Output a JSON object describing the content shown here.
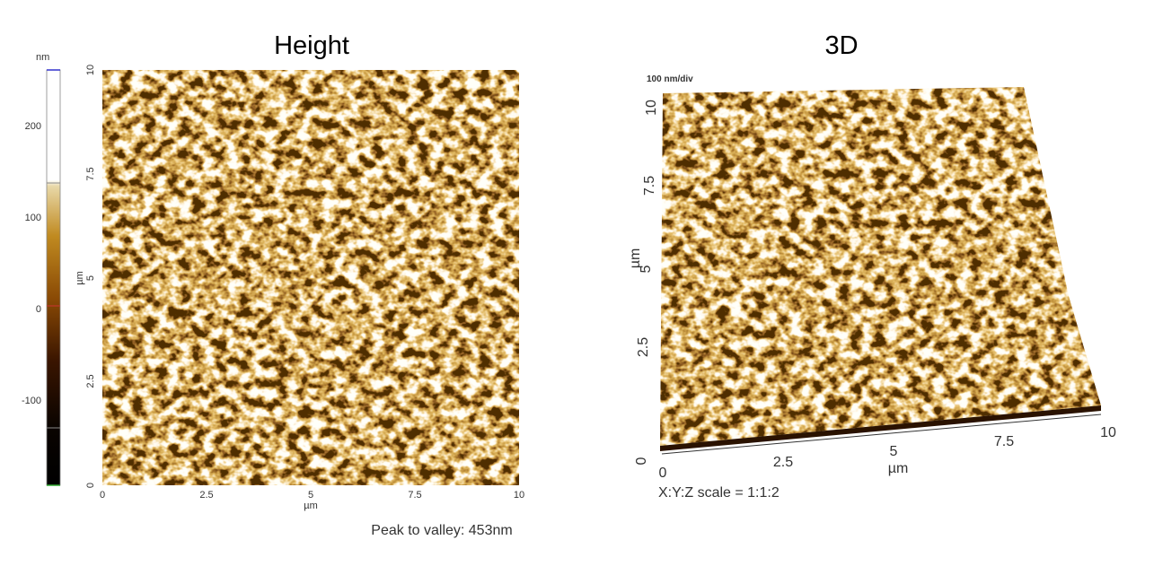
{
  "height_panel": {
    "title": "Height",
    "colorbar": {
      "unit": "nm",
      "ticks": [
        "200",
        "100",
        "0",
        "-100"
      ]
    },
    "y_axis": {
      "label": "µm",
      "ticks": [
        "0",
        "2.5",
        "5",
        "7.5",
        "10"
      ]
    },
    "x_axis": {
      "label": "µm",
      "ticks": [
        "0",
        "2.5",
        "5",
        "7.5",
        "10"
      ]
    },
    "note": "Peak to valley: 453nm"
  },
  "panel_3d": {
    "title": "3D",
    "z_scale_label": "100 nm/div",
    "y_axis": {
      "label": "µm",
      "ticks": [
        "0",
        "2.5",
        "5",
        "7.5",
        "10"
      ]
    },
    "x_axis": {
      "label": "µm",
      "ticks": [
        "0",
        "2.5",
        "5",
        "7.5",
        "10"
      ]
    },
    "scale_note": "X:Y:Z scale = 1:1:2"
  }
}
